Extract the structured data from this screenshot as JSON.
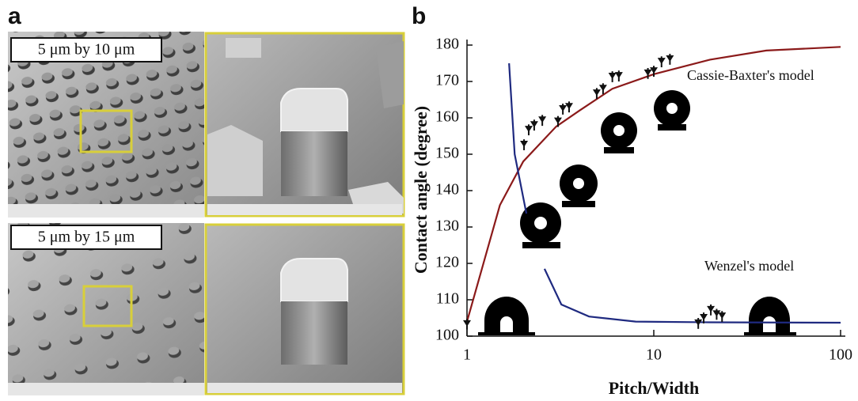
{
  "panel_a": {
    "label": "a",
    "images": [
      {
        "caption": "5 μm by 10 μm"
      },
      {
        "caption": "5 μm by 15 μm"
      }
    ]
  },
  "chart_data": {
    "type": "scatter",
    "panel_label": "b",
    "x_label": "Pitch/Width",
    "y_label": "Contact angle (degree)",
    "xscale": "log",
    "xlim": [
      1,
      100
    ],
    "xticks": [
      1,
      10,
      100
    ],
    "ylim": [
      100,
      180
    ],
    "yticks": [
      100,
      110,
      120,
      130,
      140,
      150,
      160,
      170,
      180
    ],
    "series": [
      {
        "name": "Cassie-Baxter's model",
        "color": "#8b1a1a",
        "style": "line",
        "x": [
          1,
          1.5,
          2,
          3,
          4,
          6,
          10,
          20,
          40,
          100
        ],
        "values": [
          104,
          136,
          148,
          157.6,
          162,
          168,
          172,
          176,
          178.5,
          179.5
        ]
      },
      {
        "name": "Wenzel's model",
        "color": "#1f2a80",
        "style": "line",
        "x": [
          1.68,
          1.8,
          2.08,
          2.3,
          2.6,
          3.2,
          4.5,
          8,
          20,
          100
        ],
        "values": [
          175,
          150,
          133.7,
          null,
          118.5,
          108.7,
          105.4,
          104,
          103.8,
          103.7
        ]
      },
      {
        "color": "#111111",
        "style": "points",
        "x": [
          1,
          2.02,
          2.14,
          2.29,
          2.53,
          3.07,
          3.26,
          3.52,
          4.95,
          5.35,
          6.0,
          6.5,
          9.3,
          10,
          11,
          12.2,
          17.3,
          18.5,
          20.2,
          21.7,
          23.2
        ],
        "values": [
          103.3,
          152.6,
          156.7,
          158,
          159.3,
          159,
          162.4,
          163,
          166.7,
          168,
          171.3,
          171.5,
          172.2,
          172.8,
          175.4,
          176.1,
          103.5,
          105,
          107.2,
          106,
          105.4
        ],
        "errors": [
          1.5,
          1.5,
          1.5,
          1.5,
          1.5,
          1.5,
          1.5,
          1.5,
          1.5,
          1.5,
          1.5,
          1.5,
          1.5,
          1.5,
          1.5,
          1.5,
          1.5,
          1.5,
          1.5,
          1.5,
          1.5
        ]
      }
    ]
  }
}
